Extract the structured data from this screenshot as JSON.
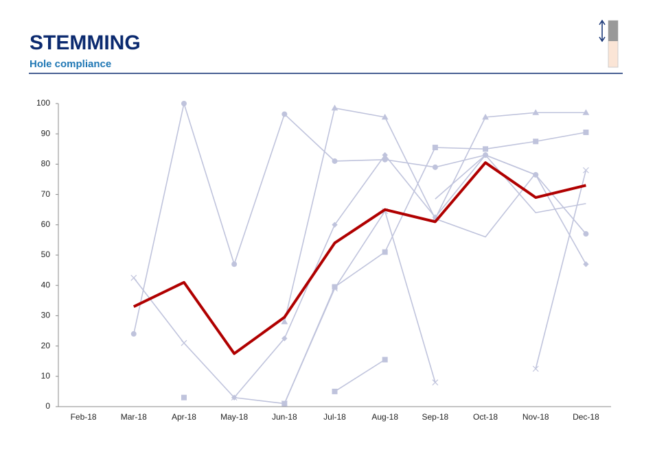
{
  "chart_data": {
    "type": "line",
    "title": "STEMMING",
    "subtitle": "Hole compliance",
    "categories": [
      "Feb-18",
      "Mar-18",
      "Apr-18",
      "May-18",
      "Jun-18",
      "Jul-18",
      "Aug-18",
      "Sep-18",
      "Oct-18",
      "Nov-18",
      "Dec-18"
    ],
    "ylim": [
      0,
      100
    ],
    "yticks": [
      0,
      10,
      20,
      30,
      40,
      50,
      60,
      70,
      80,
      90,
      100
    ],
    "grid": false,
    "series": [
      {
        "color": "#bfc3dc",
        "marker": "circle",
        "values": [
          null,
          24,
          100,
          47,
          96.5,
          81,
          81.5,
          79,
          83,
          76.5,
          57
        ]
      },
      {
        "color": "#bfc3dc",
        "marker": "triangle",
        "values": [
          null,
          null,
          null,
          null,
          28,
          98.5,
          95.5,
          62,
          95.5,
          97,
          97
        ]
      },
      {
        "color": "#bfc3dc",
        "marker": "x",
        "values": [
          null,
          42.5,
          21,
          3,
          1,
          39,
          64.5,
          8,
          null,
          null,
          null
        ]
      },
      {
        "color": "#bfc3dc",
        "marker": "x",
        "values": [
          null,
          null,
          null,
          null,
          null,
          null,
          null,
          null,
          null,
          12.5,
          78
        ]
      },
      {
        "color": "#bfc3dc",
        "marker": "diamond",
        "values": [
          null,
          null,
          null,
          3,
          22.5,
          60,
          83,
          62.5,
          83,
          76.5,
          47
        ]
      },
      {
        "color": "#bfc3dc",
        "marker": "square",
        "values": [
          null,
          null,
          3,
          null,
          1,
          39.5,
          51,
          85.5,
          85,
          87.5,
          90.5
        ]
      },
      {
        "color": "#bfc3dc",
        "marker": "square",
        "values": [
          null,
          null,
          null,
          null,
          null,
          5,
          15.5,
          null,
          null,
          null,
          null
        ]
      },
      {
        "color": "#bfc3dc",
        "marker": "none",
        "values": [
          null,
          null,
          null,
          null,
          null,
          null,
          null,
          68.5,
          83,
          64,
          67
        ]
      },
      {
        "color": "#bfc3dc",
        "marker": "none",
        "values": [
          null,
          null,
          null,
          null,
          null,
          null,
          null,
          62,
          56,
          77,
          null
        ]
      },
      {
        "color": "#b00000",
        "marker": "none",
        "width": 4,
        "values": [
          null,
          33,
          41,
          17.5,
          29.5,
          54,
          65,
          61,
          80.5,
          69,
          73
        ]
      }
    ]
  }
}
